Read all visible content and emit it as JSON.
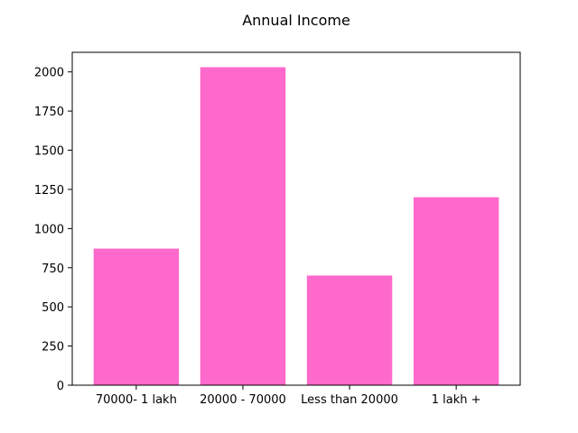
{
  "chart_data": {
    "type": "bar",
    "title": "Annual Income",
    "categories": [
      "70000- 1 lakh",
      "20000 - 70000",
      "Less than 20000",
      "1 lakh +"
    ],
    "values": [
      872,
      2030,
      700,
      1200
    ],
    "xlabel": "",
    "ylabel": "",
    "ylim": [
      0,
      2125
    ],
    "yticks": [
      0,
      250,
      500,
      750,
      1000,
      1250,
      1500,
      1750,
      2000
    ],
    "bar_color": "#ff69cc",
    "grid": false,
    "legend": "none"
  }
}
